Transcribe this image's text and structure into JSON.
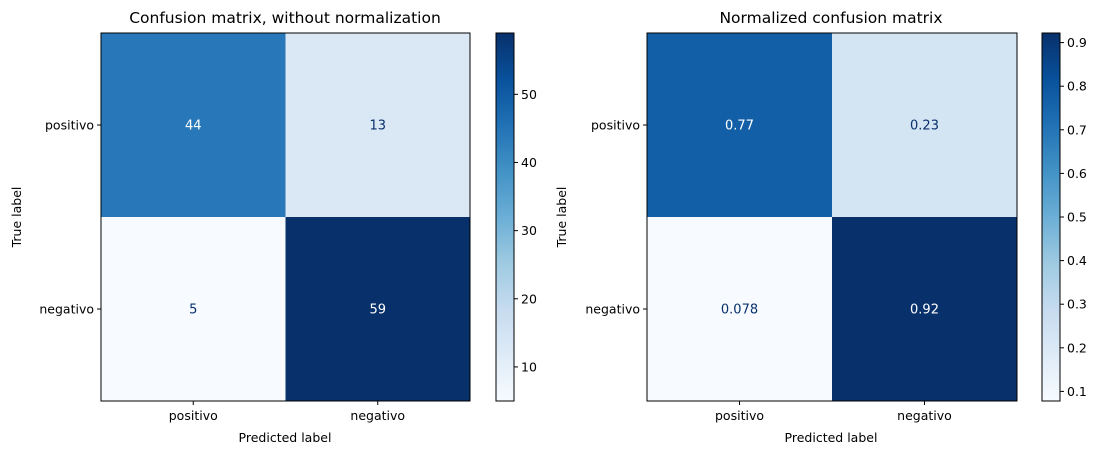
{
  "chart_data": [
    {
      "type": "heatmap",
      "title": "Confusion matrix, without normalization",
      "xlabel": "Predicted label",
      "ylabel": "True label",
      "x_categories": [
        "positivo",
        "negativo"
      ],
      "y_categories": [
        "positivo",
        "negativo"
      ],
      "values": [
        [
          44,
          13
        ],
        [
          5,
          59
        ]
      ],
      "cell_labels": [
        [
          "44",
          "13"
        ],
        [
          "5",
          "59"
        ]
      ],
      "colormap": "Blues",
      "colorbar": {
        "range": [
          5,
          59
        ],
        "ticks": [
          10,
          20,
          30,
          40,
          50
        ],
        "tick_labels": [
          "10",
          "20",
          "30",
          "40",
          "50"
        ]
      }
    },
    {
      "type": "heatmap",
      "title": "Normalized confusion matrix",
      "xlabel": "Predicted label",
      "ylabel": "True label",
      "x_categories": [
        "positivo",
        "negativo"
      ],
      "y_categories": [
        "positivo",
        "negativo"
      ],
      "values": [
        [
          0.77,
          0.23
        ],
        [
          0.078,
          0.92
        ]
      ],
      "cell_labels": [
        [
          "0.77",
          "0.23"
        ],
        [
          "0.078",
          "0.92"
        ]
      ],
      "colormap": "Blues",
      "colorbar": {
        "range": [
          0.078,
          0.922
        ],
        "ticks": [
          0.1,
          0.2,
          0.3,
          0.4,
          0.5,
          0.6,
          0.7,
          0.8,
          0.9
        ],
        "tick_labels": [
          "0.1",
          "0.2",
          "0.3",
          "0.4",
          "0.5",
          "0.6",
          "0.7",
          "0.8",
          "0.9"
        ]
      }
    }
  ]
}
